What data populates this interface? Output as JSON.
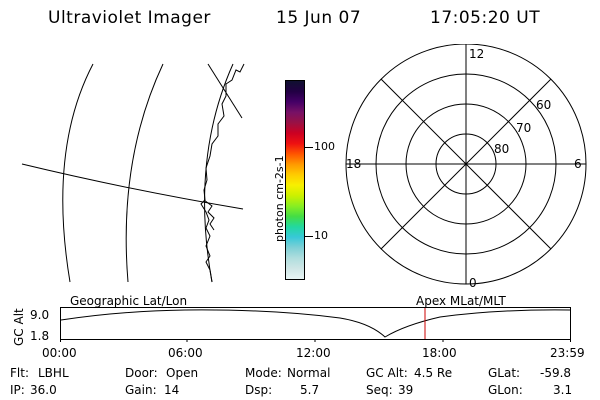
{
  "header": {
    "instrument": "Ultraviolet Imager",
    "date": "15 Jun 07",
    "time": "17:05:20 UT"
  },
  "colorbar": {
    "label": "photon cm-2s-1",
    "tick_100": "100",
    "tick_10": "10",
    "colors": [
      "#e8f4f4",
      "#cfe6e6",
      "#b0dede",
      "#7fd0d6",
      "#38c8d8",
      "#22d8a0",
      "#44dd44",
      "#88ee22",
      "#ccf000",
      "#f8f000",
      "#ffcc00",
      "#ff9900",
      "#ff5500",
      "#ee1111",
      "#cc0022",
      "#991144",
      "#771166",
      "#440066",
      "#220044",
      "#101030"
    ]
  },
  "polar": {
    "labels": {
      "top": "12",
      "left": "18",
      "right": "6",
      "bottom": "0",
      "lat60": "60",
      "lat70": "70",
      "lat80": "80"
    }
  },
  "timeline": {
    "left_label": "Geographic Lat/Lon",
    "right_label": "Apex MLat/MLT",
    "y_axis_label": "GC Alt",
    "y_max": "9.0",
    "y_min": "1.8",
    "x_ticks": [
      "00:00",
      "06:00",
      "12:00",
      "18:00",
      "23:59"
    ],
    "current_time_marker": "17:05"
  },
  "status": {
    "flt_label": "Flt:",
    "flt_value": "LBHL",
    "ip_label": "IP:",
    "ip_value": "36.0",
    "door_label": "Door:",
    "door_value": "Open",
    "gain_label": "Gain:",
    "gain_value": "14",
    "mode_label": "Mode:",
    "mode_value": "Normal",
    "dsp_label": "Dsp:",
    "dsp_value": "5.7",
    "gcalt_label": "GC Alt:",
    "gcalt_value": "4.5 Re",
    "seq_label": "Seq:",
    "seq_value": "39",
    "glat_label": "GLat:",
    "glat_value": "-59.8",
    "glon_label": "GLon:",
    "glon_value": "3.1"
  }
}
